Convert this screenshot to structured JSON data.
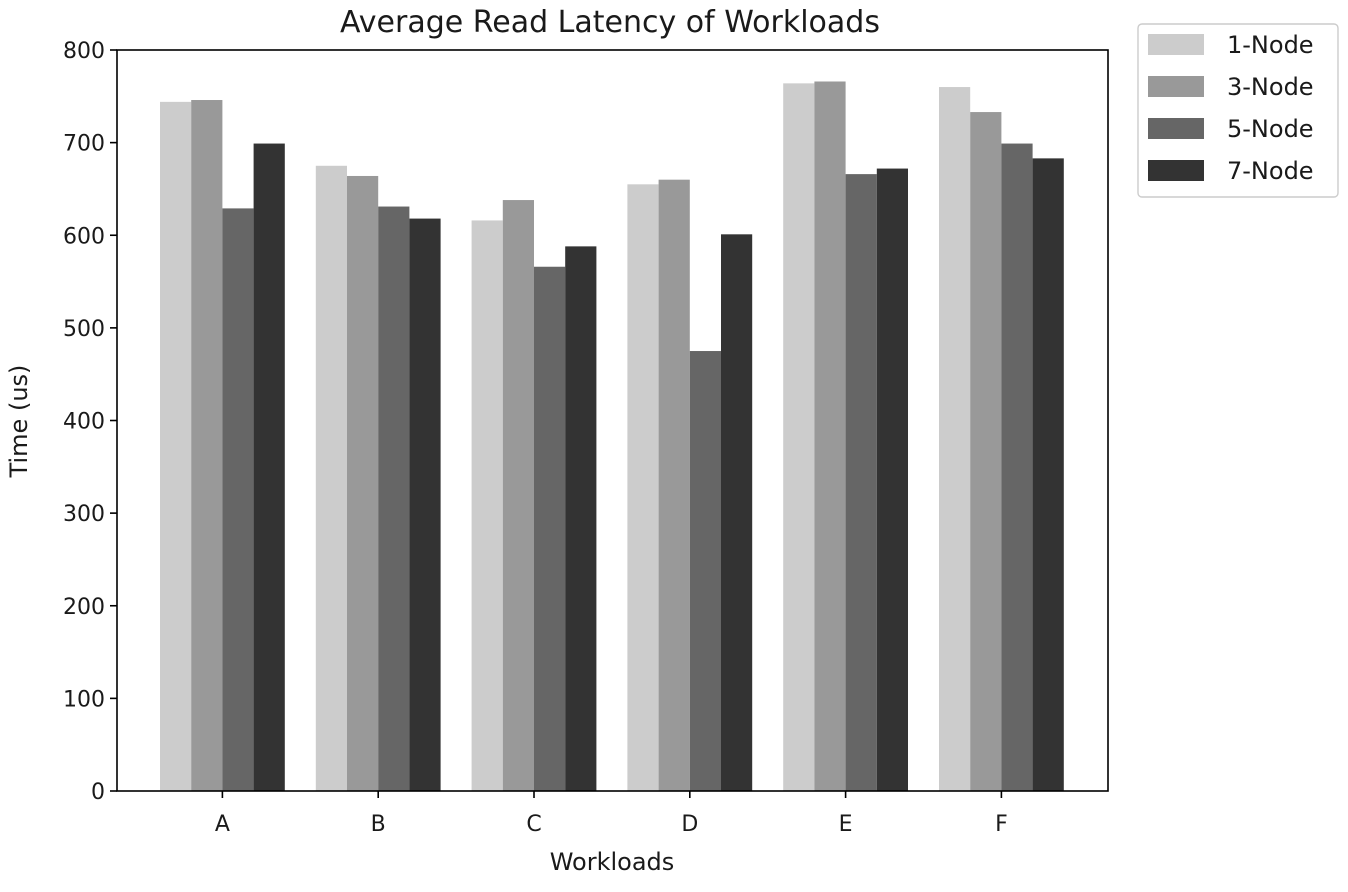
{
  "chart_data": {
    "type": "bar",
    "title": "Average Read Latency of Workloads",
    "xlabel": "Workloads",
    "ylabel": "Time (us)",
    "categories": [
      "A",
      "B",
      "C",
      "D",
      "E",
      "F"
    ],
    "ylim": [
      0,
      800
    ],
    "yticks": [
      0,
      100,
      200,
      300,
      400,
      500,
      600,
      700,
      800
    ],
    "grid": false,
    "legend_position": "outside-top-right",
    "series": [
      {
        "name": "1-Node",
        "color": "#cccccc",
        "values": [
          744,
          675,
          616,
          655,
          764,
          760
        ]
      },
      {
        "name": "3-Node",
        "color": "#999999",
        "values": [
          746,
          664,
          638,
          660,
          766,
          733
        ]
      },
      {
        "name": "5-Node",
        "color": "#666666",
        "values": [
          629,
          631,
          566,
          475,
          666,
          699
        ]
      },
      {
        "name": "7-Node",
        "color": "#333333",
        "values": [
          699,
          618,
          588,
          601,
          672,
          683
        ]
      }
    ]
  }
}
